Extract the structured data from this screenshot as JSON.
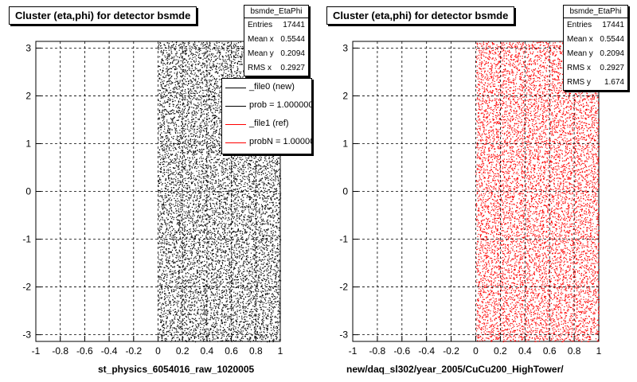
{
  "chart_data": [
    {
      "type": "scatter",
      "title": "Cluster (eta,phi) for detector bsmde",
      "xlabel": "st_physics_6054016_raw_1020005",
      "ylabel": "",
      "xlim": [
        -1,
        1
      ],
      "ylim": [
        -3.14,
        3.14
      ],
      "x_ticks": [
        "-1",
        "-0.8",
        "-0.6",
        "-0.4",
        "-0.2",
        "0",
        "0.2",
        "0.4",
        "0.6",
        "0.8",
        "1"
      ],
      "y_ticks": [
        "3",
        "2",
        "1",
        "0",
        "-1",
        "-2",
        "-3"
      ],
      "grid": true,
      "marker_color": "#000000",
      "data_region": {
        "eta": [
          0,
          1
        ],
        "phi": [
          -3.14,
          3.14
        ]
      },
      "stats": {
        "name": "bsmde_EtaPhi",
        "rows": [
          {
            "label": "Entries",
            "value": "17441"
          },
          {
            "label": "Mean x",
            "value": "0.5544"
          },
          {
            "label": "Mean y",
            "value": "0.2094"
          },
          {
            "label": "RMS x",
            "value": "0.2927"
          }
        ]
      },
      "legend": {
        "placement": "top-right",
        "entries": [
          {
            "label": "_file0 (new)",
            "color": "#000000"
          },
          {
            "label": "prob = 1.000000",
            "color": "#000000"
          },
          {
            "label": "_file1 (ref)",
            "color": "#ff0000"
          },
          {
            "label": "probN = 1.000000",
            "color": "#ff0000"
          }
        ]
      }
    },
    {
      "type": "scatter",
      "title": "Cluster (eta,phi) for detector bsmde",
      "xlabel": "new/daq_sl302/year_2005/CuCu200_HighTower/",
      "ylabel": "",
      "xlim": [
        -1,
        1
      ],
      "ylim": [
        -3.14,
        3.14
      ],
      "x_ticks": [
        "-1",
        "-0.8",
        "-0.6",
        "-0.4",
        "-0.2",
        "0",
        "0.2",
        "0.4",
        "0.6",
        "0.8",
        "1"
      ],
      "y_ticks": [
        "3",
        "2",
        "1",
        "0",
        "-1",
        "-2",
        "-3"
      ],
      "grid": true,
      "marker_color": "#ff0000",
      "data_region": {
        "eta": [
          0,
          1
        ],
        "phi": [
          -3.14,
          3.14
        ]
      },
      "stats": {
        "name": "bsmde_EtaPhi",
        "rows": [
          {
            "label": "Entries",
            "value": "17441"
          },
          {
            "label": "Mean x",
            "value": "0.5544"
          },
          {
            "label": "Mean y",
            "value": "0.2094"
          },
          {
            "label": "RMS x",
            "value": "0.2927"
          },
          {
            "label": "RMS y",
            "value": "1.674"
          }
        ]
      }
    }
  ]
}
